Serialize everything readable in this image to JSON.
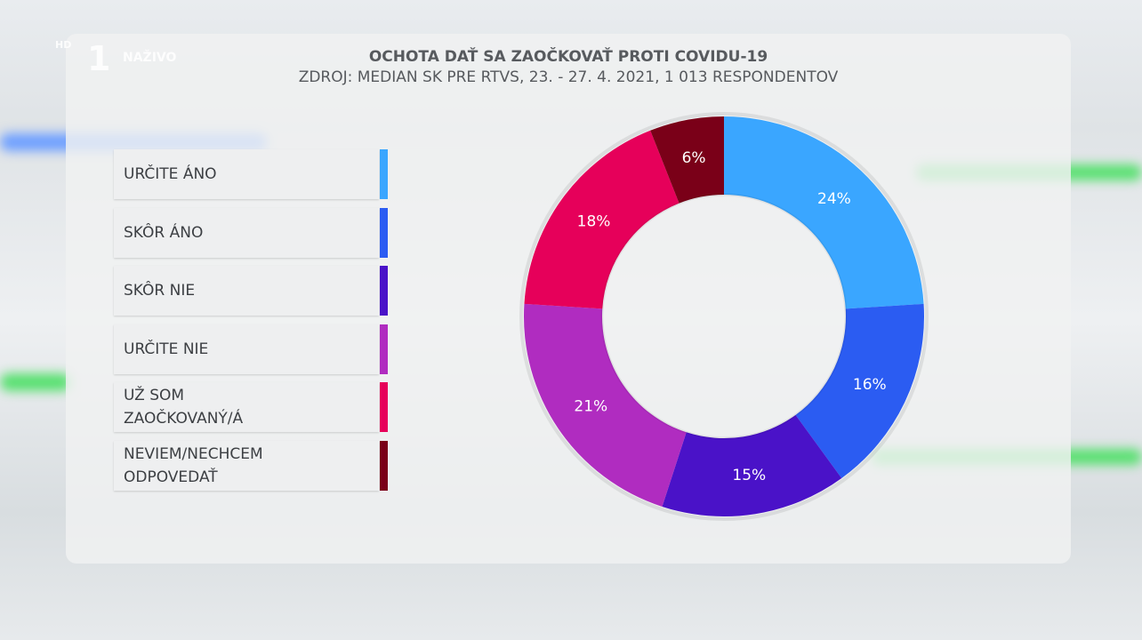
{
  "channel": {
    "badge": "HD",
    "logo": "1",
    "live": "NAŽIVO"
  },
  "chart_data": {
    "type": "donut",
    "title": "OCHOTA DAŤ SA ZAOČKOVAŤ PROTI COVIDU-19",
    "subtitle": "ZDROJ: MEDIAN SK PRE RTVS, 23. - 27. 4. 2021, 1 013 RESPONDENTOV",
    "categories": [
      "URČITE ÁNO",
      "SKÔR ÁNO",
      "SKÔR NIE",
      "URČITE NIE",
      "UŽ SOM ZAOČKOVANÝ/Á",
      "NEVIEM/NECHCEM ODPOVEDAŤ"
    ],
    "values": [
      24,
      16,
      15,
      21,
      18,
      6
    ],
    "value_labels": [
      "24%",
      "16%",
      "15%",
      "21%",
      "18%",
      "6%"
    ],
    "colors": [
      "#3aa6ff",
      "#2b5cf2",
      "#4a12c8",
      "#b02cc0",
      "#e6005a",
      "#7a0018"
    ]
  }
}
